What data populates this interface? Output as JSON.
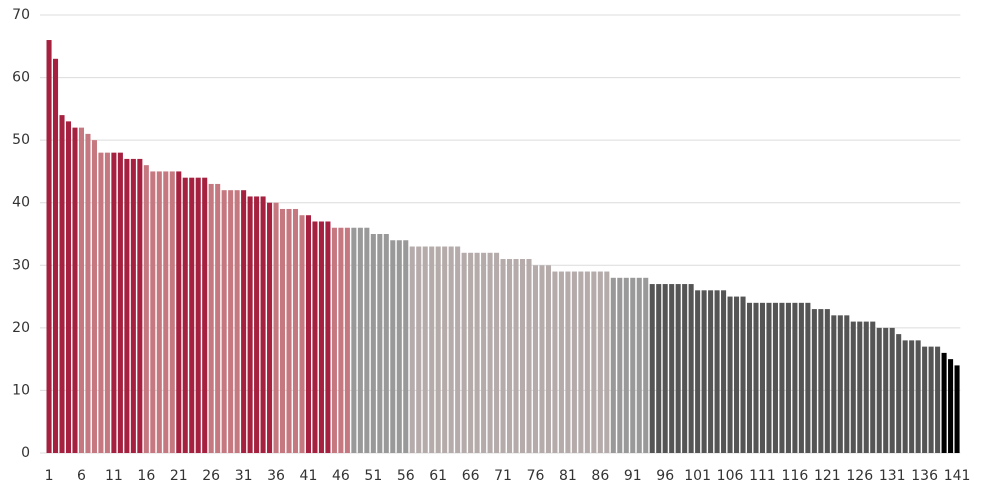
{
  "chart_data": {
    "type": "bar",
    "x": [
      1,
      2,
      3,
      4,
      5,
      6,
      7,
      8,
      9,
      10,
      11,
      12,
      13,
      14,
      15,
      16,
      17,
      18,
      19,
      20,
      21,
      22,
      23,
      24,
      25,
      26,
      27,
      28,
      29,
      30,
      31,
      32,
      33,
      34,
      35,
      36,
      37,
      38,
      39,
      40,
      41,
      42,
      43,
      44,
      45,
      46,
      47,
      48,
      49,
      50,
      51,
      52,
      53,
      54,
      55,
      56,
      57,
      58,
      59,
      60,
      61,
      62,
      63,
      64,
      65,
      66,
      67,
      68,
      69,
      70,
      71,
      72,
      73,
      74,
      75,
      76,
      77,
      78,
      79,
      80,
      81,
      82,
      83,
      84,
      85,
      86,
      87,
      88,
      89,
      90,
      91,
      92,
      93,
      94,
      95,
      96,
      97,
      98,
      99,
      100,
      101,
      102,
      103,
      104,
      105,
      106,
      107,
      108,
      109,
      110,
      111,
      112,
      113,
      114,
      115,
      116,
      117,
      118,
      119,
      120,
      121,
      122,
      123,
      124,
      125,
      126,
      127,
      128,
      129,
      130,
      131,
      132,
      133,
      134,
      135,
      136,
      137,
      138,
      139,
      140,
      141
    ],
    "values": [
      66,
      63,
      54,
      53,
      52,
      52,
      51,
      50,
      48,
      48,
      48,
      48,
      47,
      47,
      47,
      46,
      45,
      45,
      45,
      45,
      45,
      44,
      44,
      44,
      44,
      43,
      43,
      42,
      42,
      42,
      42,
      41,
      41,
      41,
      40,
      40,
      39,
      39,
      39,
      38,
      38,
      37,
      37,
      37,
      36,
      36,
      36,
      36,
      36,
      36,
      35,
      35,
      35,
      34,
      34,
      34,
      33,
      33,
      33,
      33,
      33,
      33,
      33,
      33,
      32,
      32,
      32,
      32,
      32,
      32,
      31,
      31,
      31,
      31,
      31,
      30,
      30,
      30,
      29,
      29,
      29,
      29,
      29,
      29,
      29,
      29,
      29,
      28,
      28,
      28,
      28,
      28,
      28,
      27,
      27,
      27,
      27,
      27,
      27,
      27,
      26,
      26,
      26,
      26,
      26,
      25,
      25,
      25,
      24,
      24,
      24,
      24,
      24,
      24,
      24,
      24,
      24,
      24,
      23,
      23,
      23,
      22,
      22,
      22,
      21,
      21,
      21,
      21,
      20,
      20,
      20,
      19,
      18,
      18,
      18,
      17,
      17,
      17,
      16,
      15,
      14
    ],
    "colors": [
      "#a5213f",
      "#a5213f",
      "#a5213f",
      "#a5213f",
      "#a5213f",
      "#c57880",
      "#c57880",
      "#c57880",
      "#c57880",
      "#c57880",
      "#a5213f",
      "#a5213f",
      "#a5213f",
      "#a5213f",
      "#a5213f",
      "#c57880",
      "#c57880",
      "#c57880",
      "#c57880",
      "#c57880",
      "#a5213f",
      "#a5213f",
      "#a5213f",
      "#a5213f",
      "#a5213f",
      "#c57880",
      "#c57880",
      "#c57880",
      "#c57880",
      "#c57880",
      "#a5213f",
      "#a5213f",
      "#a5213f",
      "#a5213f",
      "#a5213f",
      "#c57880",
      "#c57880",
      "#c57880",
      "#c57880",
      "#c57880",
      "#a5213f",
      "#a5213f",
      "#a5213f",
      "#a5213f",
      "#c57880",
      "#c57880",
      "#c57880",
      "#999999",
      "#999999",
      "#999999",
      "#999999",
      "#999999",
      "#999999",
      "#999999",
      "#999999",
      "#999999",
      "#b5abab",
      "#b5abab",
      "#b5abab",
      "#b5abab",
      "#b5abab",
      "#b5abab",
      "#b5abab",
      "#b5abab",
      "#b5abab",
      "#b5abab",
      "#b5abab",
      "#b5abab",
      "#b5abab",
      "#b5abab",
      "#b5abab",
      "#b5abab",
      "#b5abab",
      "#b5abab",
      "#b5abab",
      "#b5abab",
      "#b5abab",
      "#b5abab",
      "#b5abab",
      "#b5abab",
      "#b5abab",
      "#b5abab",
      "#b5abab",
      "#b5abab",
      "#b5abab",
      "#b5abab",
      "#b5abab",
      "#999999",
      "#999999",
      "#999999",
      "#999999",
      "#999999",
      "#999999",
      "#555555",
      "#555555",
      "#555555",
      "#555555",
      "#555555",
      "#555555",
      "#555555",
      "#555555",
      "#555555",
      "#555555",
      "#555555",
      "#555555",
      "#555555",
      "#555555",
      "#555555",
      "#555555",
      "#555555",
      "#555555",
      "#555555",
      "#555555",
      "#555555",
      "#555555",
      "#555555",
      "#555555",
      "#555555",
      "#555555",
      "#555555",
      "#555555",
      "#555555",
      "#555555",
      "#555555",
      "#555555",
      "#555555",
      "#555555",
      "#555555",
      "#555555",
      "#555555",
      "#555555",
      "#555555",
      "#555555",
      "#555555",
      "#555555",
      "#555555",
      "#555555",
      "#555555"
    ],
    "xlim": [
      0.5,
      141.5
    ],
    "xticks": [
      1,
      6,
      11,
      16,
      21,
      26,
      31,
      36,
      41,
      46,
      51,
      56,
      61,
      66,
      71,
      76,
      81,
      86,
      91,
      96,
      101,
      106,
      111,
      116,
      121,
      126,
      131,
      136,
      141
    ],
    "ylim": [
      0,
      70
    ],
    "yticks": [
      0,
      10,
      20,
      30,
      40,
      50,
      60,
      70
    ],
    "grid": true
  }
}
